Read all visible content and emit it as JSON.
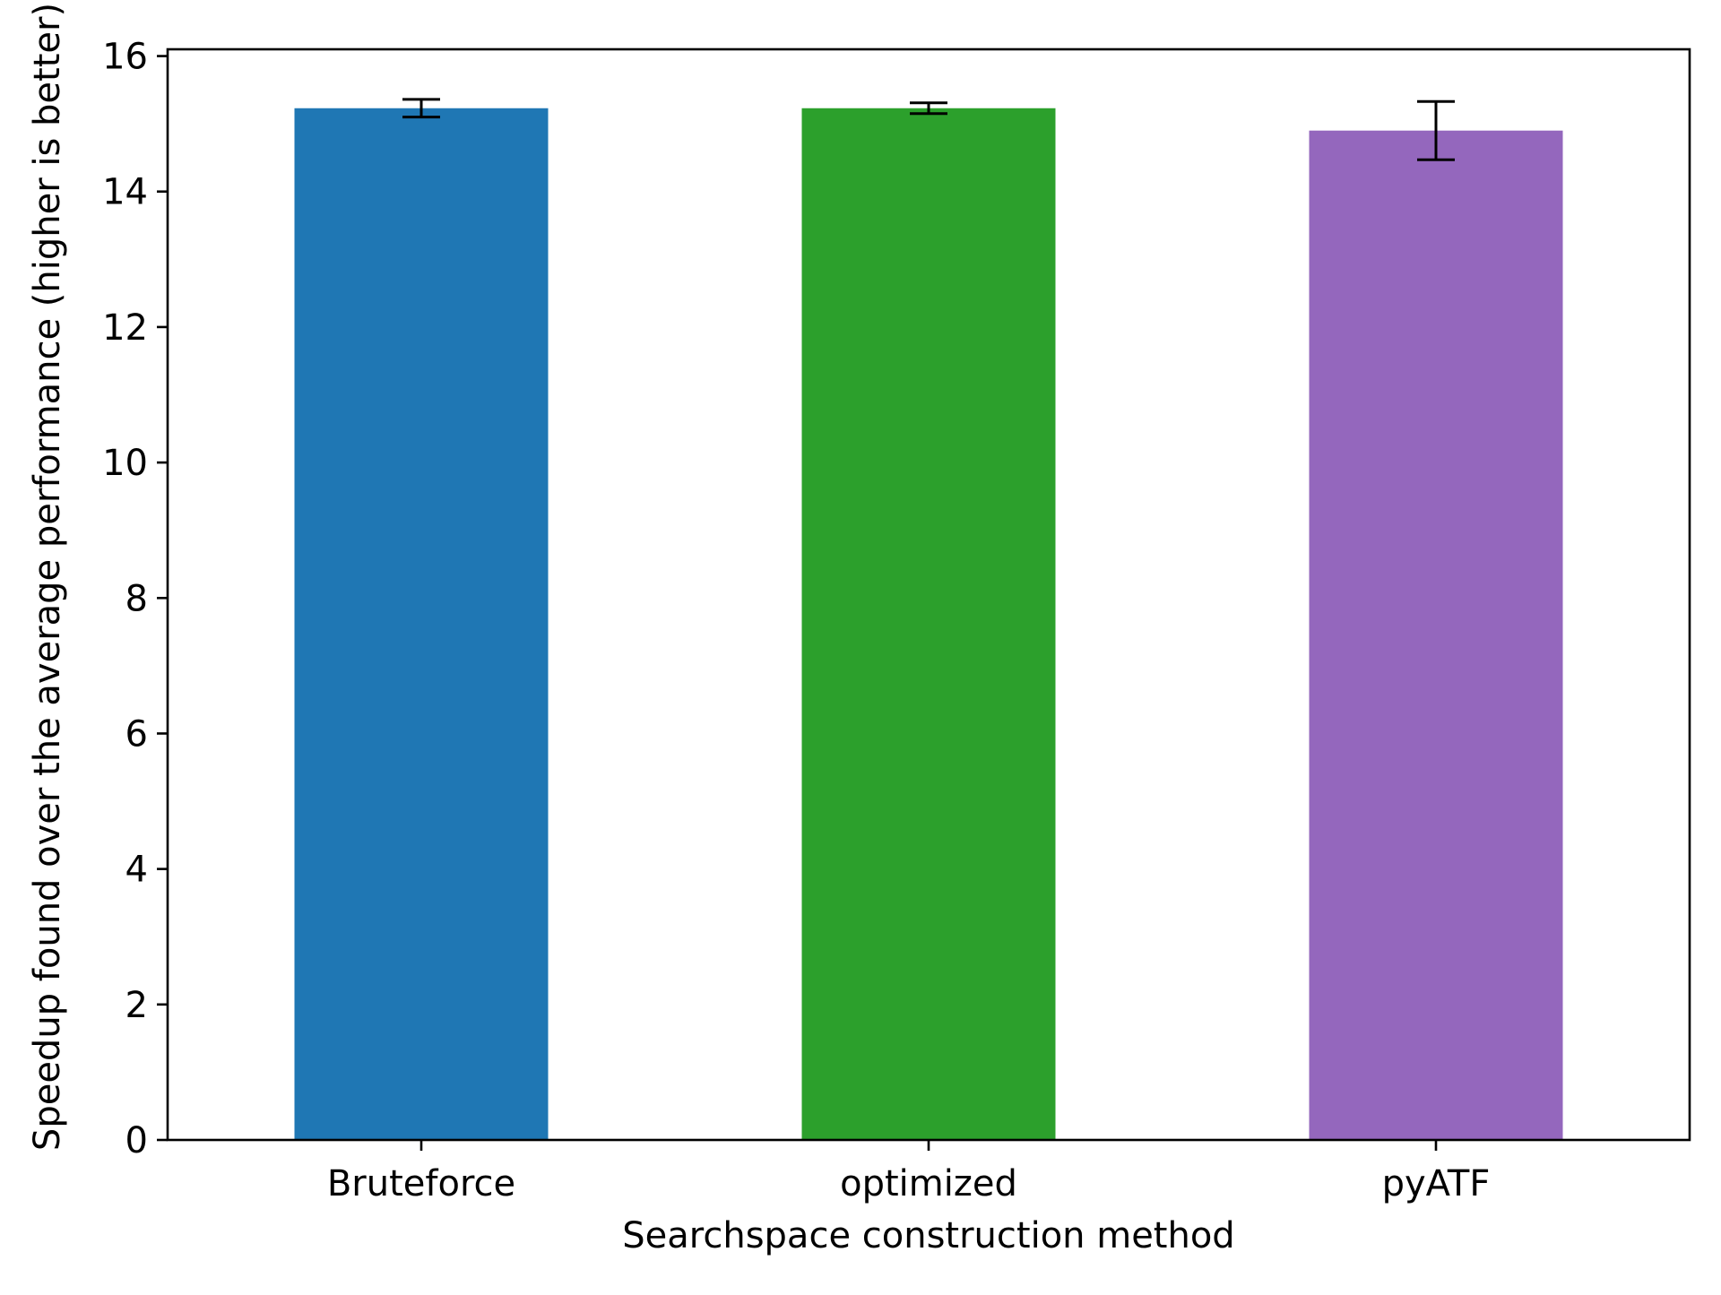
{
  "chart_data": {
    "type": "bar",
    "title": "",
    "xlabel": "Searchspace construction method",
    "ylabel": "Speedup found over the average performance (higher is better)",
    "categories": [
      "Bruteforce",
      "optimized",
      "pyATF"
    ],
    "values": [
      15.23,
      15.23,
      14.9
    ],
    "error": [
      0.13,
      0.08,
      0.43
    ],
    "colors": [
      "#1f77b4",
      "#2ca02c",
      "#9467bd"
    ],
    "ylim": [
      0,
      16.1
    ],
    "yticks": [
      0,
      2,
      4,
      6,
      8,
      10,
      12,
      14,
      16
    ],
    "grid": false,
    "legend": "none"
  }
}
